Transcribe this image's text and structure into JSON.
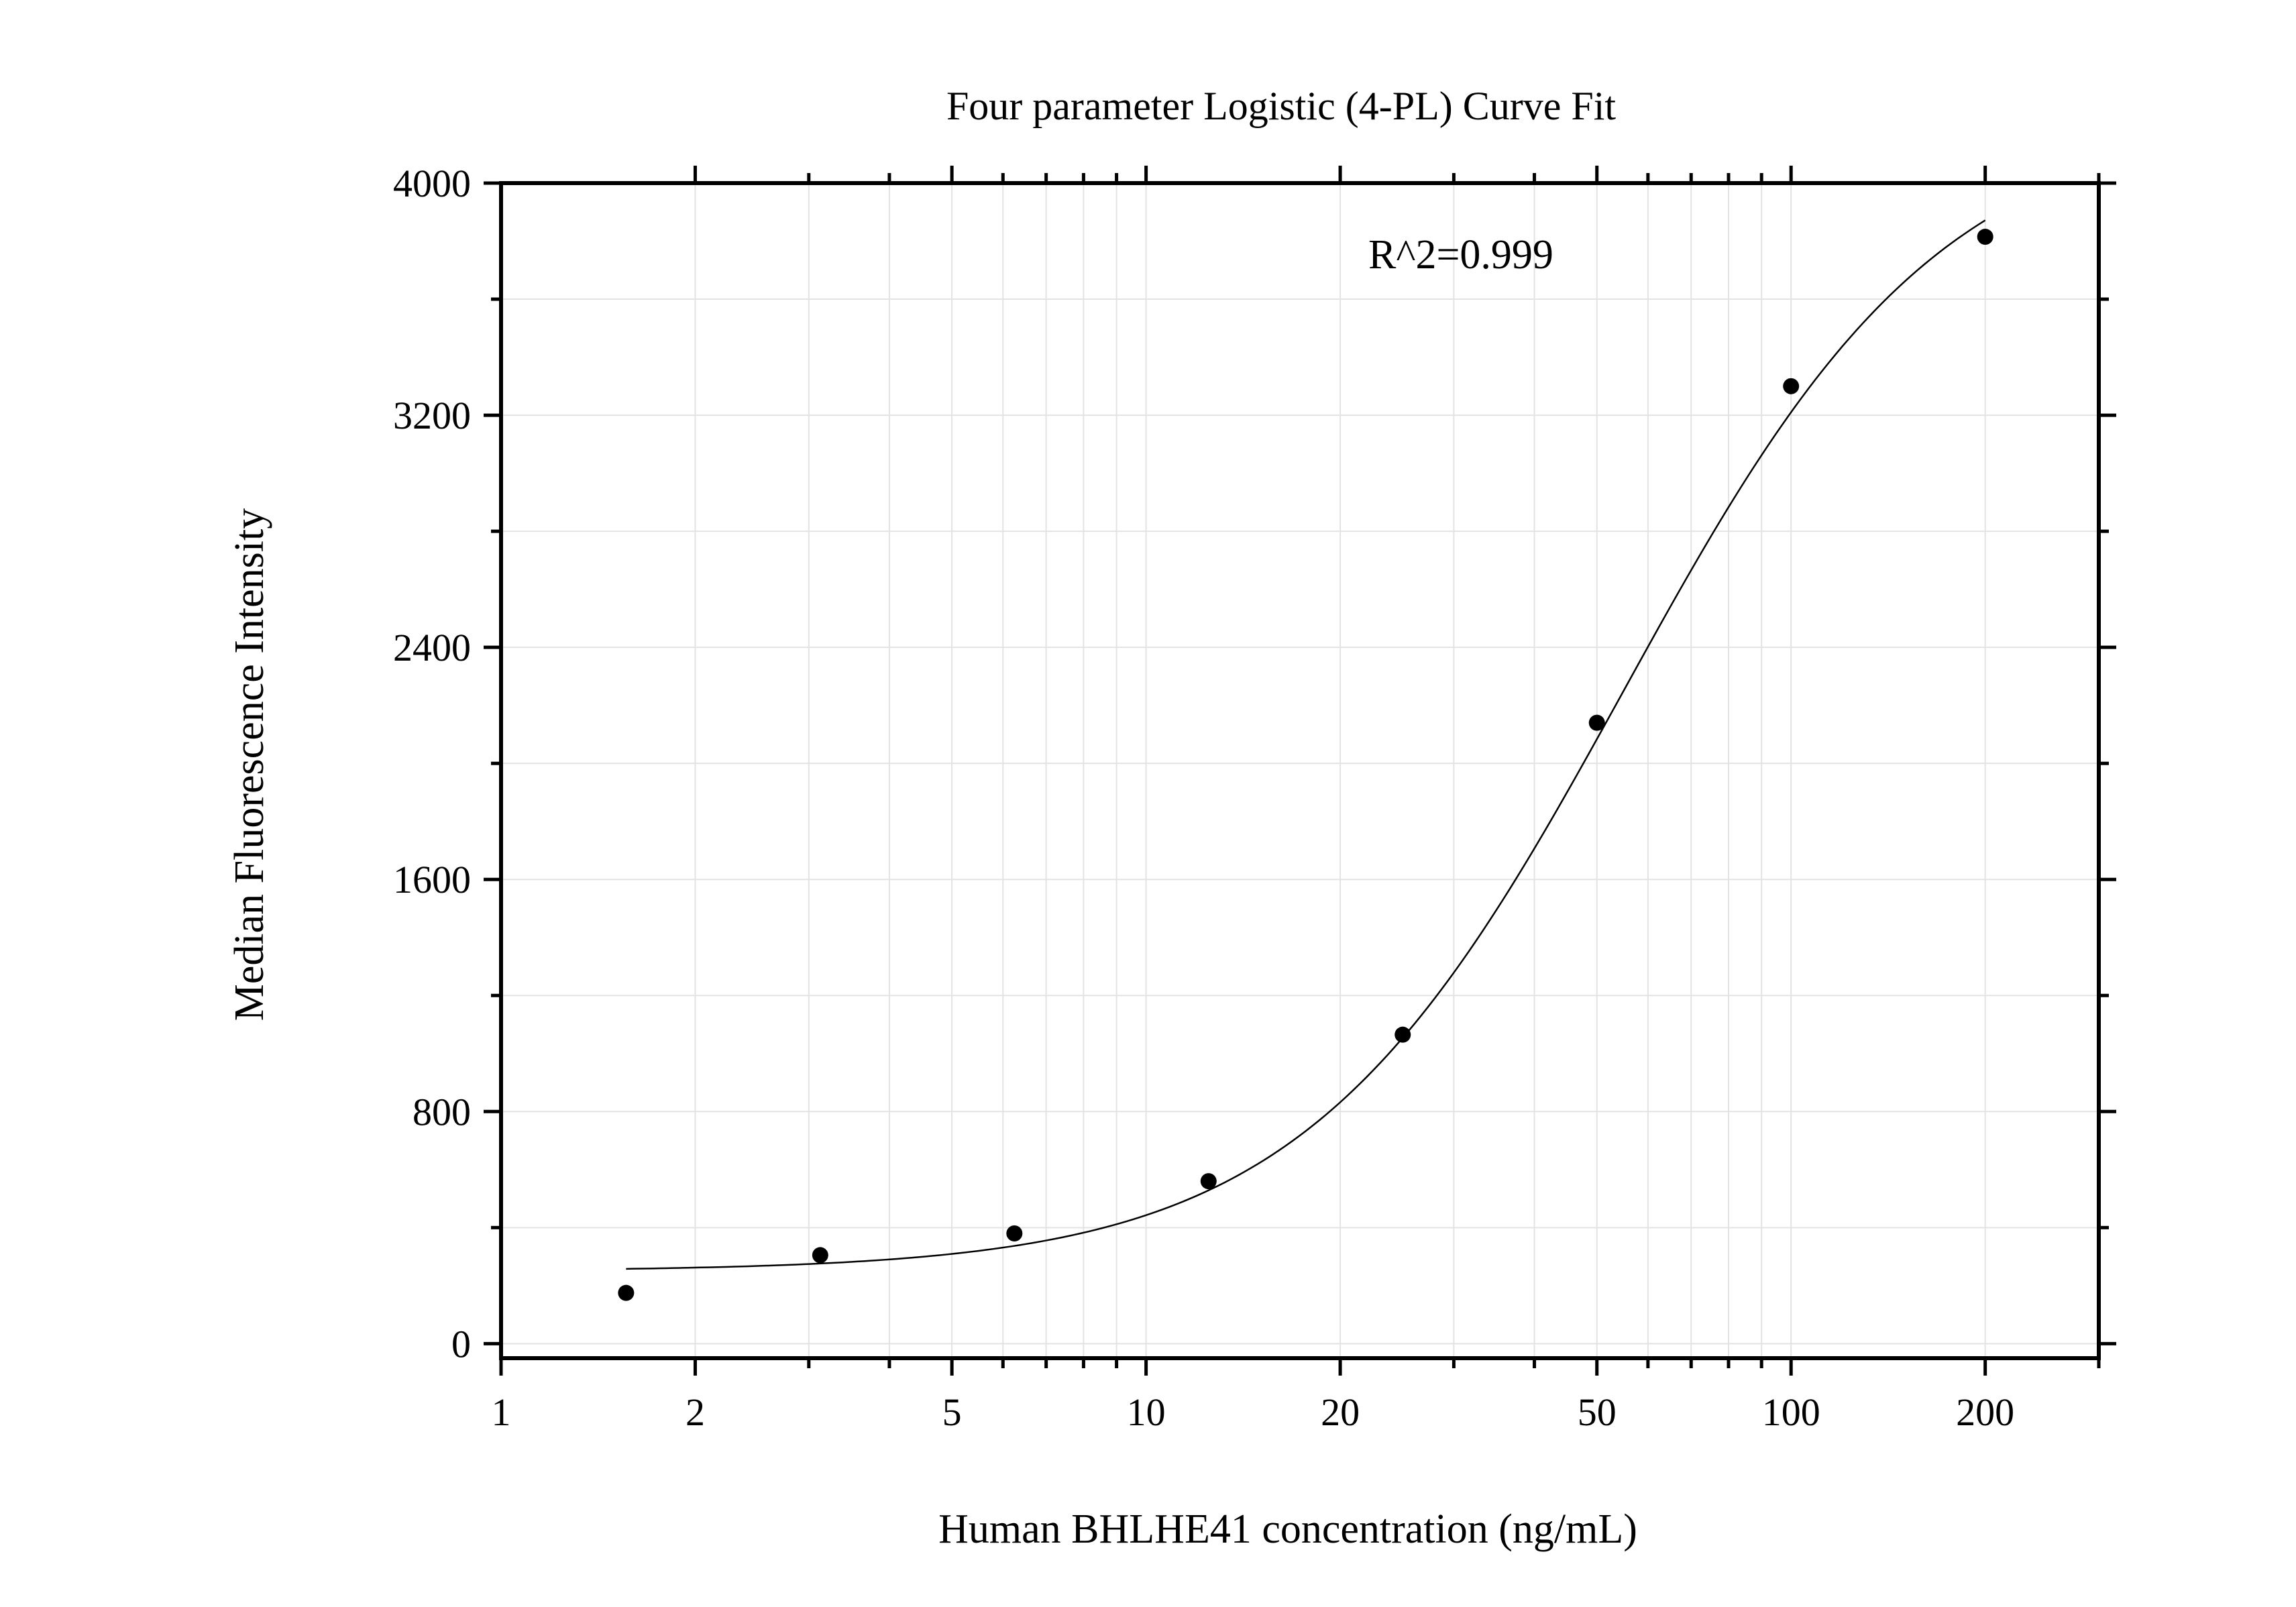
{
  "chart_data": {
    "type": "scatter",
    "title": "Four parameter Logistic (4-PL) Curve Fit",
    "xlabel": "Human BHLHE41 concentration (ng/mL)",
    "ylabel": "Median Fluorescence Intensity",
    "x_scale": "log",
    "xlim": [
      1,
      300
    ],
    "ylim": [
      -50,
      4000
    ],
    "x_ticks": [
      1,
      2,
      5,
      10,
      20,
      50,
      100,
      200
    ],
    "x_tick_labels": [
      "1",
      "2",
      "5",
      "10",
      "20",
      "50",
      "100",
      "200"
    ],
    "y_ticks": [
      0,
      800,
      1600,
      2400,
      3200,
      4000
    ],
    "y_tick_labels": [
      "0",
      "800",
      "1600",
      "2400",
      "3200",
      "4000"
    ],
    "grid": true,
    "annotation": "R^2=0.999",
    "series": [
      {
        "kind": "points",
        "x": [
          1.5625,
          3.125,
          6.25,
          12.5,
          25,
          50,
          100,
          200
        ],
        "y": [
          175,
          305,
          380,
          560,
          1065,
          2140,
          3300,
          3815
        ]
      },
      {
        "kind": "fit-curve",
        "model": "4PL",
        "params": {
          "bottom": 250,
          "top": 4250,
          "ec50": 55,
          "hill": 1.75
        },
        "x_range": [
          1.5625,
          200
        ]
      }
    ],
    "colors": {
      "points": "#000000",
      "curve": "#000000",
      "grid": "#e3e3e3",
      "axis": "#000000"
    }
  }
}
